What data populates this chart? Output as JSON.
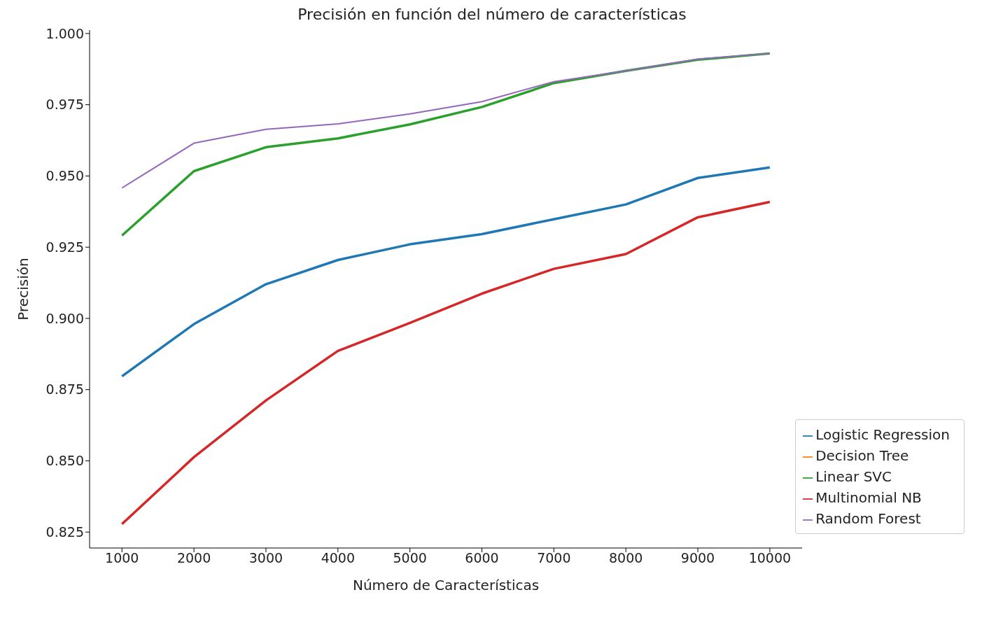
{
  "chart_data": {
    "type": "line",
    "title": "Precisión en función del número de características",
    "xlabel": "Número de Características",
    "ylabel": "Precisión",
    "x": [
      1000,
      2000,
      3000,
      4000,
      5000,
      6000,
      7000,
      8000,
      9000,
      10000
    ],
    "series": [
      {
        "name": "Logistic Regression",
        "color": "#1f77b4",
        "values": [
          0.8797,
          0.898,
          0.912,
          0.9205,
          0.926,
          0.9296,
          0.9348,
          0.94,
          0.9493,
          0.953
        ]
      },
      {
        "name": "Decision Tree",
        "color": "#ff7f0e",
        "values": [
          null,
          null,
          null,
          null,
          null,
          null,
          null,
          null,
          null,
          null
        ]
      },
      {
        "name": "Linear SVC",
        "color": "#2ca02c",
        "values": [
          0.9291,
          0.9517,
          0.9601,
          0.9632,
          0.9681,
          0.9742,
          0.9826,
          0.9869,
          0.9908,
          0.993
        ]
      },
      {
        "name": "Multinomial NB",
        "color": "#d62728",
        "values": [
          0.8278,
          0.8513,
          0.8712,
          0.8886,
          0.8984,
          0.9087,
          0.9174,
          0.9226,
          0.9355,
          0.9409
        ]
      },
      {
        "name": "Random Forest",
        "color": "#9467bd",
        "values": [
          0.9458,
          0.9615,
          0.9664,
          0.9683,
          0.9718,
          0.9761,
          0.9831,
          0.9869,
          0.991,
          0.993
        ]
      }
    ],
    "xlim": [
      550,
      10450
    ],
    "xticks": [
      1000,
      2000,
      3000,
      4000,
      5000,
      6000,
      7000,
      8000,
      9000,
      10000
    ],
    "ylim": [
      0.8194,
      1.0012
    ],
    "yticks": [
      {
        "value": 0.825,
        "label": "0.825"
      },
      {
        "value": 0.85,
        "label": "0.850"
      },
      {
        "value": 0.875,
        "label": "0.875"
      },
      {
        "value": 0.9,
        "label": "0.900"
      },
      {
        "value": 0.925,
        "label": "0.925"
      },
      {
        "value": 0.95,
        "label": "0.950"
      },
      {
        "value": 0.975,
        "label": "0.975"
      },
      {
        "value": 1.0,
        "label": "1.000"
      }
    ],
    "grid": false,
    "legend": "bottom right",
    "marker": "none",
    "line_style": "solid"
  }
}
